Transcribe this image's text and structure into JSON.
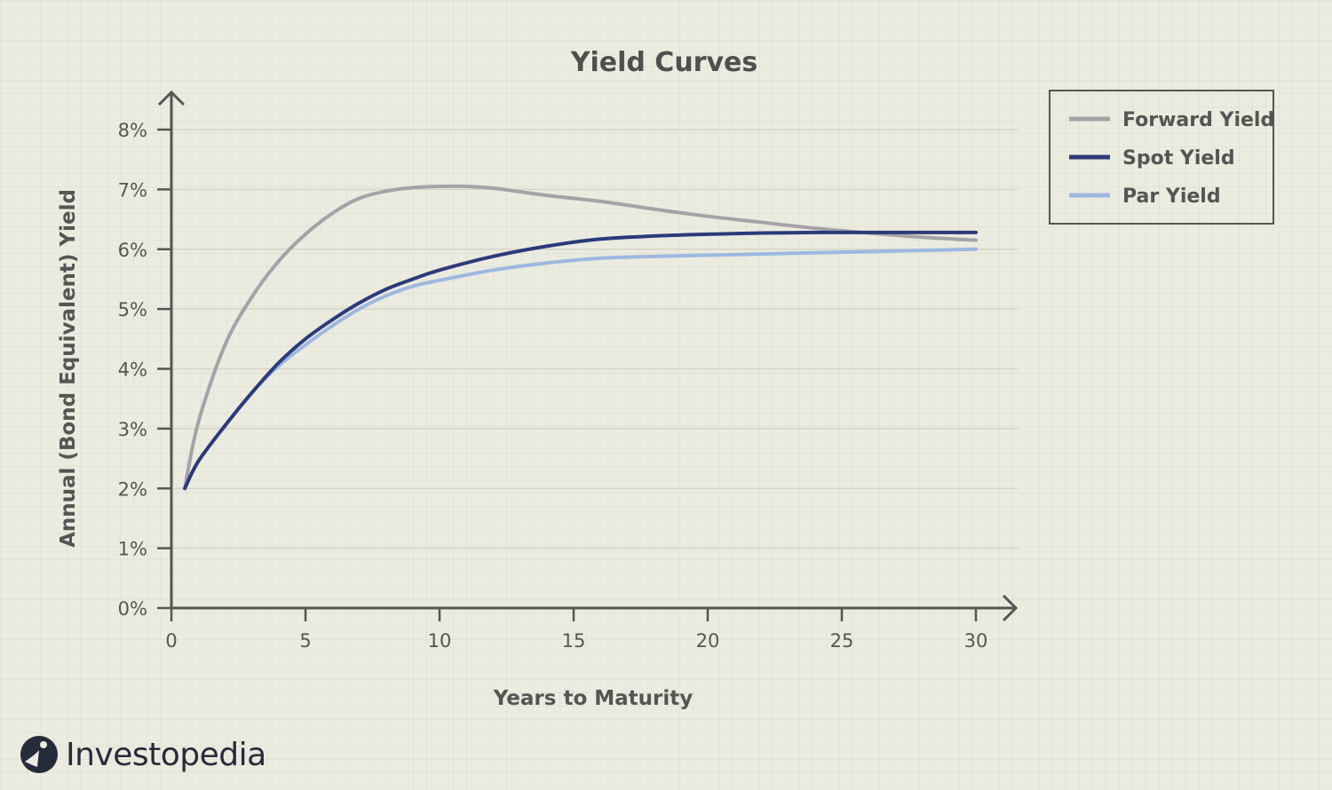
{
  "chart_data": {
    "type": "line",
    "title": "Yield Curves",
    "xlabel": "Years to Maturity",
    "ylabel": "Annual (Bond Equivalent) Yield",
    "xlim": [
      0,
      30
    ],
    "ylim": [
      0,
      8
    ],
    "x_ticks": [
      "0",
      "5",
      "10",
      "15",
      "20",
      "25",
      "30"
    ],
    "y_ticks": [
      "0%",
      "1%",
      "2%",
      "3%",
      "4%",
      "5%",
      "6%",
      "7%",
      "8%"
    ],
    "grid": true,
    "legend_position": "top-right",
    "series": [
      {
        "name": "Forward Yield",
        "color": "#a3a3a8",
        "x": [
          0.5,
          1,
          2,
          3,
          4,
          5,
          6,
          7,
          8,
          9,
          10,
          11,
          12,
          14,
          16,
          18,
          20,
          22,
          24,
          26,
          28,
          30
        ],
        "y": [
          2.0,
          3.1,
          4.4,
          5.2,
          5.8,
          6.25,
          6.6,
          6.85,
          6.97,
          7.03,
          7.05,
          7.05,
          7.02,
          6.9,
          6.8,
          6.67,
          6.55,
          6.45,
          6.35,
          6.27,
          6.2,
          6.15
        ]
      },
      {
        "name": "Spot Yield",
        "color": "#2b3a7a",
        "x": [
          0.5,
          1,
          2,
          3,
          4,
          5,
          6,
          7,
          8,
          9,
          10,
          12,
          14,
          16,
          18,
          20,
          22,
          24,
          26,
          28,
          30
        ],
        "y": [
          2.0,
          2.45,
          3.05,
          3.6,
          4.1,
          4.5,
          4.82,
          5.1,
          5.33,
          5.5,
          5.65,
          5.88,
          6.05,
          6.17,
          6.22,
          6.25,
          6.27,
          6.28,
          6.28,
          6.28,
          6.28
        ]
      },
      {
        "name": "Par Yield",
        "color": "#9db8e0",
        "x": [
          0.5,
          1,
          2,
          3,
          4,
          5,
          6,
          7,
          8,
          9,
          10,
          12,
          14,
          16,
          18,
          20,
          22,
          24,
          26,
          28,
          30
        ],
        "y": [
          2.0,
          2.45,
          3.05,
          3.6,
          4.05,
          4.4,
          4.72,
          5.0,
          5.22,
          5.38,
          5.48,
          5.65,
          5.77,
          5.85,
          5.88,
          5.9,
          5.92,
          5.94,
          5.96,
          5.98,
          6.0
        ]
      }
    ]
  },
  "brand": {
    "name": "Investopedia"
  }
}
